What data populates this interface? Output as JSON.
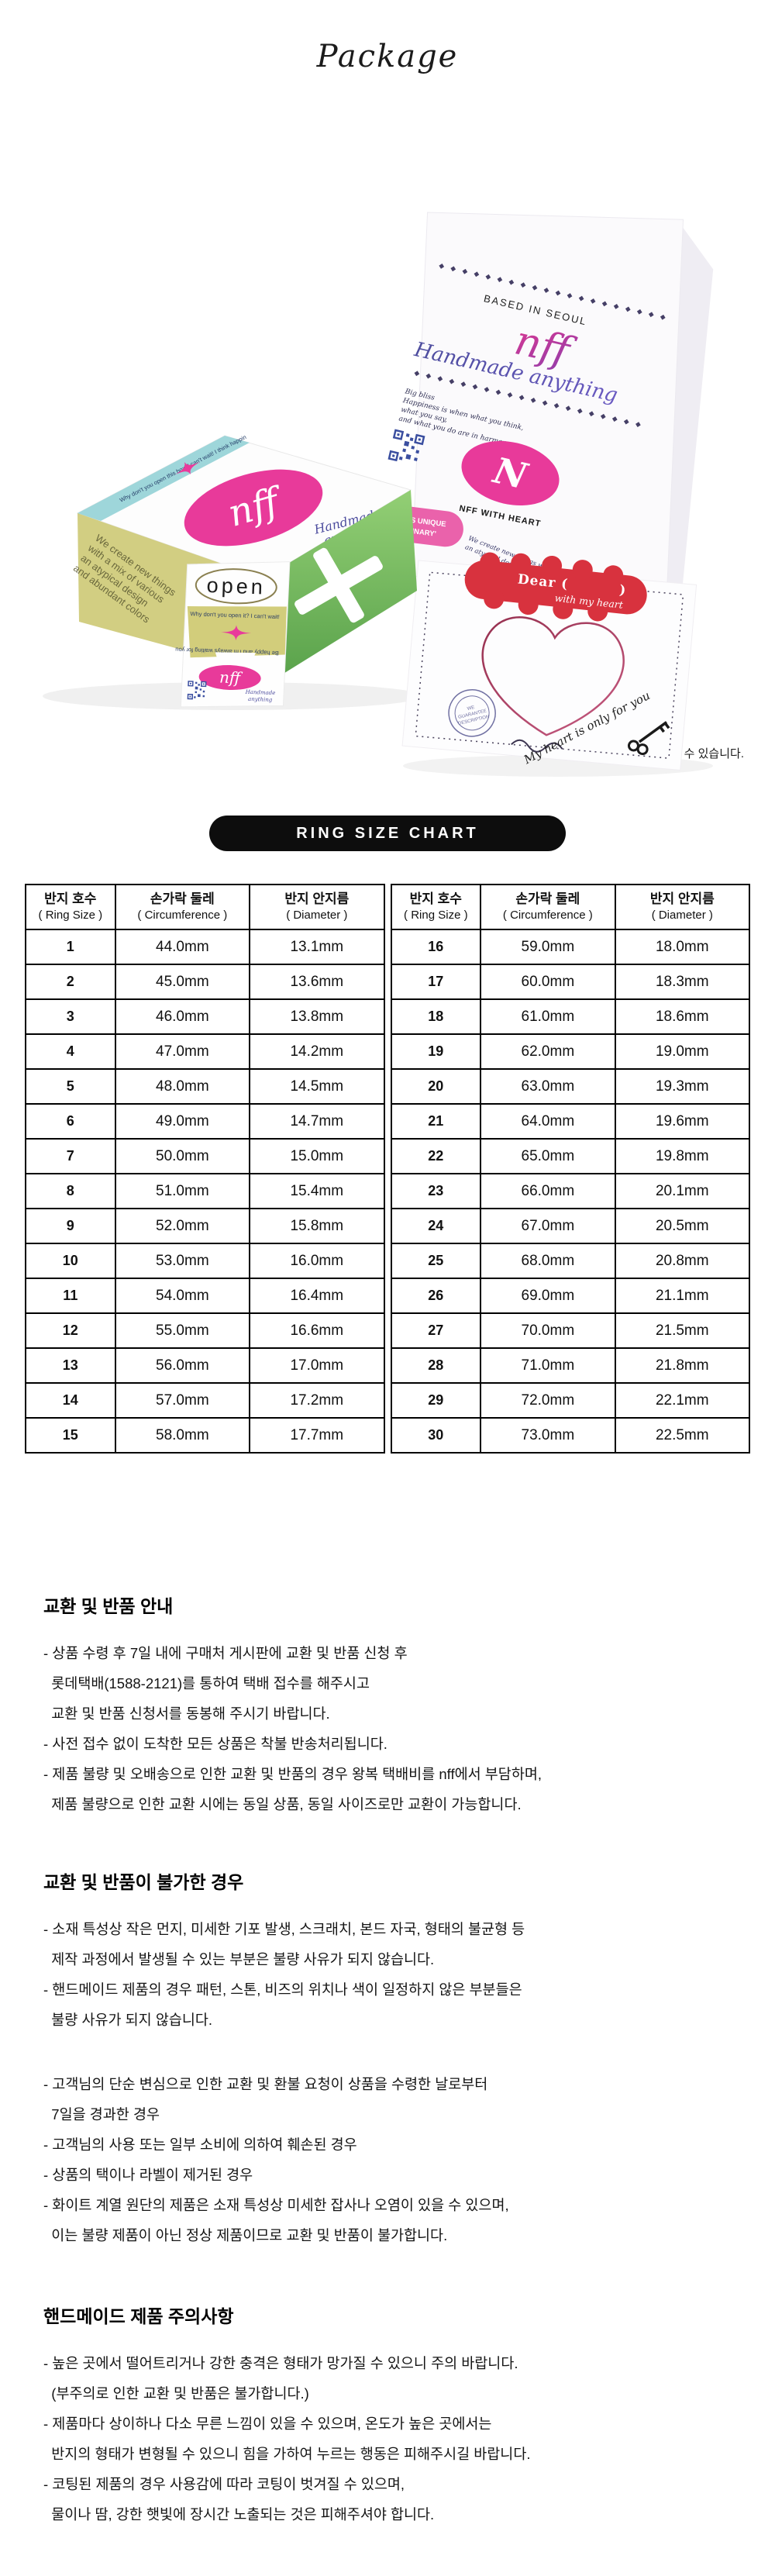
{
  "page": {
    "title": "Package",
    "note": "* 디자인은 시즌마다 변경될 수 있습니다."
  },
  "colors": {
    "pink": "#e83a9a",
    "teal": "#9ed6da",
    "green": "#6fbe58",
    "olive": "#d2cd7b",
    "red_banner": "#d8323e",
    "script_blue": "#4d4d9e",
    "pill_black": "#0d0d0d"
  },
  "packaging": {
    "bag": {
      "diamonds": "◆ ◆ ◆ ◆ ◆ ◆ ◆ ◆ ◆ ◆ ◆ ◆ ◆ ◆ ◆ ◆ ◆ ◆ ◆ ◆",
      "based_in": "BASED IN SEOUL",
      "logo": "nff",
      "tagline": "Handmade anything",
      "bliss_lines": [
        "Big bliss",
        "Happiness is when what you think,",
        "what you say,",
        "and what you do are in harmony"
      ],
      "monogram": "N",
      "heart_label": "NFF WITH HEART",
      "style_badge_line1": "YOUR STYLE IS UNIQUE",
      "style_badge_line2": "AND UNORDINARY'",
      "create_line1": "We create new things with a mix of various materials,",
      "create_line2": "an atypical design, and abundant colors."
    },
    "box": {
      "logo": "nff",
      "tagline_line1": "Handmade",
      "tagline_line2": "anything",
      "band_line": "Why don't you open this box! I can't wait! I think happin",
      "side_lines": [
        "We create new things",
        "with a mix of various",
        "an atypical design",
        "and abundant colors"
      ],
      "open_label": "open",
      "open_line": "Why don't you open it?  I can't wait!",
      "flip_line": "Be happy and I'm always waiting for you"
    },
    "letter": {
      "dear": "Dear (",
      "dear_close": ")",
      "with_heart": "with my heart",
      "stamp_line1": "WE",
      "stamp_line2": "GUARANTEE",
      "stamp_line3": "DESCRIPTION",
      "my_heart": "My heart is only for you"
    }
  },
  "ring_chart": {
    "pill_label": "RING SIZE CHART",
    "header": {
      "col1_ko": "반지 호수",
      "col1_en": "( Ring Size )",
      "col2_ko": "손가락 둘레",
      "col2_en": "( Circumference )",
      "col3_ko": "반지 안지름",
      "col3_en": "( Diameter )"
    },
    "left_rows": [
      [
        "1",
        "44.0mm",
        "13.1mm"
      ],
      [
        "2",
        "45.0mm",
        "13.6mm"
      ],
      [
        "3",
        "46.0mm",
        "13.8mm"
      ],
      [
        "4",
        "47.0mm",
        "14.2mm"
      ],
      [
        "5",
        "48.0mm",
        "14.5mm"
      ],
      [
        "6",
        "49.0mm",
        "14.7mm"
      ],
      [
        "7",
        "50.0mm",
        "15.0mm"
      ],
      [
        "8",
        "51.0mm",
        "15.4mm"
      ],
      [
        "9",
        "52.0mm",
        "15.8mm"
      ],
      [
        "10",
        "53.0mm",
        "16.0mm"
      ],
      [
        "11",
        "54.0mm",
        "16.4mm"
      ],
      [
        "12",
        "55.0mm",
        "16.6mm"
      ],
      [
        "13",
        "56.0mm",
        "17.0mm"
      ],
      [
        "14",
        "57.0mm",
        "17.2mm"
      ],
      [
        "15",
        "58.0mm",
        "17.7mm"
      ]
    ],
    "right_rows": [
      [
        "16",
        "59.0mm",
        "18.0mm"
      ],
      [
        "17",
        "60.0mm",
        "18.3mm"
      ],
      [
        "18",
        "61.0mm",
        "18.6mm"
      ],
      [
        "19",
        "62.0mm",
        "19.0mm"
      ],
      [
        "20",
        "63.0mm",
        "19.3mm"
      ],
      [
        "21",
        "64.0mm",
        "19.6mm"
      ],
      [
        "22",
        "65.0mm",
        "19.8mm"
      ],
      [
        "23",
        "66.0mm",
        "20.1mm"
      ],
      [
        "24",
        "67.0mm",
        "20.5mm"
      ],
      [
        "25",
        "68.0mm",
        "20.8mm"
      ],
      [
        "26",
        "69.0mm",
        "21.1mm"
      ],
      [
        "27",
        "70.0mm",
        "21.5mm"
      ],
      [
        "28",
        "71.0mm",
        "21.8mm"
      ],
      [
        "29",
        "72.0mm",
        "22.1mm"
      ],
      [
        "30",
        "73.0mm",
        "22.5mm"
      ]
    ]
  },
  "sections": [
    {
      "title": "교환 및 반품 안내",
      "lines": [
        "- 상품 수령 후 7일 내에 구매처 게시판에 교환 및 반품 신청 후",
        "  롯데택배(1588-2121)를 통하여 택배 접수를 해주시고",
        "  교환 및 반품 신청서를 동봉해 주시기 바랍니다.",
        "- 사전 접수 없이 도착한 모든 상품은 착불 반송처리됩니다.",
        "- 제품 불량 및 오배송으로 인한 교환 및 반품의 경우 왕복 택배비를 nff에서 부담하며,",
        "  제품 불량으로 인한 교환 시에는 동일 상품, 동일 사이즈로만 교환이 가능합니다."
      ]
    },
    {
      "title": "교환 및 반품이 불가한 경우",
      "lines": [
        "- 소재 특성상 작은 먼지, 미세한 기포 발생, 스크래치, 본드 자국, 형태의 불균형 등",
        "  제작 과정에서 발생될 수 있는 부분은 불량 사유가 되지 않습니다.",
        "- 핸드메이드 제품의 경우 패턴, 스톤, 비즈의 위치나 색이 일정하지 않은 부분들은",
        "  불량 사유가 되지 않습니다.",
        "",
        "- 고객님의 단순 변심으로 인한 교환 및 환불 요청이 상품을 수령한 날로부터",
        "  7일을 경과한 경우",
        "- 고객님의 사용 또는 일부 소비에 의하여 훼손된 경우",
        "- 상품의 택이나 라벨이 제거된 경우",
        "- 화이트 계열 원단의 제품은 소재 특성상 미세한 잡사나 오염이 있을 수 있으며,",
        "  이는 불량 제품이 아닌 정상 제품이므로 교환 및 반품이 불가합니다."
      ]
    },
    {
      "title": "핸드메이드 제품 주의사항",
      "lines": [
        "- 높은 곳에서 떨어트리거나 강한 충격은 형태가 망가질 수 있으니 주의 바랍니다.",
        "  (부주의로 인한 교환 및 반품은 불가합니다.)",
        "- 제품마다 상이하나 다소 무른 느낌이 있을 수 있으며, 온도가 높은 곳에서는",
        "  반지의 형태가 변형될 수 있으니 힘을 가하여 누르는 행동은 피해주시길 바랍니다.",
        "- 코팅된 제품의 경우 사용감에 따라 코팅이 벗겨질 수 있으며,",
        "  물이나 땀, 강한 햇빛에 장시간 노출되는 것은 피해주셔야 합니다."
      ]
    }
  ]
}
